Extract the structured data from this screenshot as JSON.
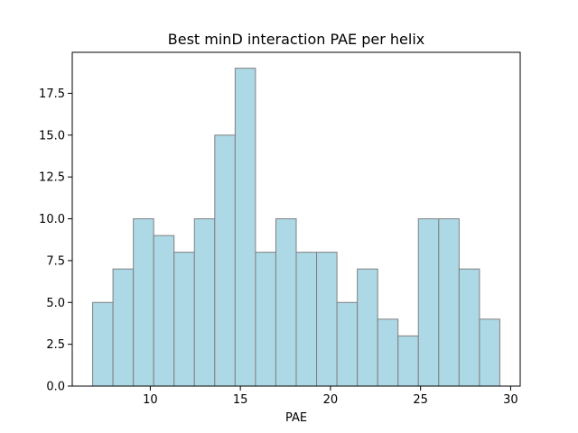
{
  "chart_data": {
    "type": "histogram",
    "title": "Best minD interaction PAE per helix",
    "xlabel": "PAE",
    "ylabel": "",
    "bins": [
      {
        "x0": 6.8,
        "x1": 7.93,
        "count": 5
      },
      {
        "x0": 7.93,
        "x1": 9.06,
        "count": 7
      },
      {
        "x0": 9.06,
        "x1": 10.19,
        "count": 10
      },
      {
        "x0": 10.19,
        "x1": 11.32,
        "count": 9
      },
      {
        "x0": 11.32,
        "x1": 12.45,
        "count": 8
      },
      {
        "x0": 12.45,
        "x1": 13.58,
        "count": 10
      },
      {
        "x0": 13.58,
        "x1": 14.71,
        "count": 15
      },
      {
        "x0": 14.71,
        "x1": 15.84,
        "count": 19
      },
      {
        "x0": 15.84,
        "x1": 16.97,
        "count": 8
      },
      {
        "x0": 16.97,
        "x1": 18.1,
        "count": 10
      },
      {
        "x0": 18.1,
        "x1": 19.23,
        "count": 8
      },
      {
        "x0": 19.23,
        "x1": 20.36,
        "count": 8
      },
      {
        "x0": 20.36,
        "x1": 21.49,
        "count": 5
      },
      {
        "x0": 21.49,
        "x1": 22.62,
        "count": 7
      },
      {
        "x0": 22.62,
        "x1": 23.75,
        "count": 4
      },
      {
        "x0": 23.75,
        "x1": 24.88,
        "count": 3
      },
      {
        "x0": 24.88,
        "x1": 26.01,
        "count": 10
      },
      {
        "x0": 26.01,
        "x1": 27.14,
        "count": 10
      },
      {
        "x0": 27.14,
        "x1": 28.27,
        "count": 7
      },
      {
        "x0": 28.27,
        "x1": 29.4,
        "count": 4
      }
    ],
    "xlim": [
      5.67,
      30.53
    ],
    "ylim": [
      0,
      19.95
    ],
    "xticks": [
      10,
      15,
      20,
      25,
      30
    ],
    "xtick_labels": [
      "10",
      "15",
      "20",
      "25",
      "30"
    ],
    "yticks": [
      0,
      2.5,
      5,
      7.5,
      10,
      12.5,
      15,
      17.5
    ],
    "ytick_labels": [
      "0.0",
      "2.5",
      "5.0",
      "7.5",
      "10.0",
      "12.5",
      "15.0",
      "17.5"
    ],
    "grid": false,
    "colors": {
      "bar_fill": "#add8e6",
      "bar_edge": "#808080",
      "axis": "#000000"
    }
  }
}
